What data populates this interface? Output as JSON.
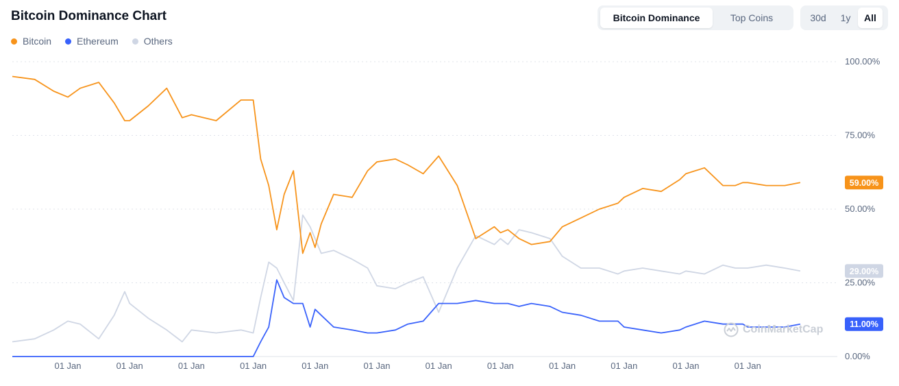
{
  "header": {
    "title": "Bitcoin Dominance Chart",
    "tabs": [
      {
        "label": "Bitcoin Dominance",
        "active": true
      },
      {
        "label": "Top Coins",
        "active": false
      }
    ],
    "ranges": [
      {
        "label": "30d",
        "active": false
      },
      {
        "label": "1y",
        "active": false
      },
      {
        "label": "All",
        "active": true
      }
    ]
  },
  "watermark": {
    "text": "CoinMarketCap",
    "icon": "coinmarketcap-logo-icon"
  },
  "colors": {
    "bitcoin": "#f7931a",
    "ethereum": "#3861fb",
    "others": "#cfd6e4",
    "grid": "#dfe3ea"
  },
  "chart_data": {
    "type": "line",
    "title": "Bitcoin Dominance Chart",
    "ylim": [
      0,
      100
    ],
    "y_ticks": [
      "0.00%",
      "25.00%",
      "50.00%",
      "75.00%",
      "100.00%"
    ],
    "x_ticks": [
      "01 Jan",
      "01 Jan",
      "01 Jan",
      "01 Jan",
      "01 Jan",
      "01 Jan",
      "01 Jan",
      "01 Jan",
      "01 Jan",
      "01 Jan",
      "01 Jan",
      "01 Jan"
    ],
    "x": [
      2013.33,
      2013.6,
      2013.83,
      2014.0,
      2014.2,
      2014.5,
      2014.75,
      2014.92,
      2015.0,
      2015.3,
      2015.6,
      2015.85,
      2016.0,
      2016.4,
      2016.8,
      2017.0,
      2017.12,
      2017.25,
      2017.38,
      2017.5,
      2017.65,
      2017.8,
      2017.92,
      2018.0,
      2018.1,
      2018.3,
      2018.6,
      2018.85,
      2019.0,
      2019.3,
      2019.5,
      2019.75,
      2020.0,
      2020.3,
      2020.6,
      2020.9,
      2021.0,
      2021.12,
      2021.3,
      2021.5,
      2021.8,
      2022.0,
      2022.3,
      2022.6,
      2022.9,
      2023.0,
      2023.3,
      2023.6,
      2023.9,
      2024.0,
      2024.3,
      2024.6,
      2024.8,
      2024.92,
      2025.0,
      2025.3,
      2025.6,
      2025.85
    ],
    "series": [
      {
        "name": "Bitcoin",
        "tag": "59.00%",
        "values": [
          95,
          94,
          90,
          88,
          91,
          93,
          86,
          80,
          80,
          85,
          91,
          81,
          82,
          80,
          87,
          87,
          67,
          58,
          43,
          55,
          63,
          35,
          42,
          37,
          45,
          55,
          54,
          63,
          66,
          67,
          65,
          62,
          68,
          58,
          40,
          44,
          42,
          43,
          40,
          38,
          39,
          44,
          47,
          50,
          52,
          54,
          57,
          56,
          60,
          62,
          64,
          58,
          58,
          59,
          59,
          58,
          58,
          59
        ]
      },
      {
        "name": "Ethereum",
        "tag": "11.00%",
        "values": [
          0,
          0,
          0,
          0,
          0,
          0,
          0,
          0,
          0,
          0,
          0,
          0,
          0,
          0,
          0,
          0,
          5,
          10,
          26,
          20,
          18,
          18,
          10,
          16,
          14,
          10,
          9,
          8,
          8,
          9,
          11,
          12,
          18,
          18,
          19,
          18,
          18,
          18,
          17,
          18,
          17,
          15,
          14,
          12,
          12,
          10,
          9,
          8,
          9,
          10,
          12,
          11,
          11,
          11,
          10,
          10,
          10,
          11
        ]
      },
      {
        "name": "Others",
        "tag": "29.00%",
        "values": [
          5,
          6,
          9,
          12,
          11,
          6,
          14,
          22,
          18,
          13,
          9,
          5,
          9,
          8,
          9,
          8,
          20,
          32,
          30,
          25,
          19,
          48,
          44,
          40,
          35,
          36,
          33,
          30,
          24,
          23,
          25,
          27,
          15,
          30,
          41,
          38,
          40,
          38,
          43,
          42,
          40,
          34,
          30,
          30,
          28,
          29,
          30,
          29,
          28,
          29,
          28,
          31,
          30,
          30,
          30,
          31,
          30,
          29
        ]
      }
    ]
  }
}
